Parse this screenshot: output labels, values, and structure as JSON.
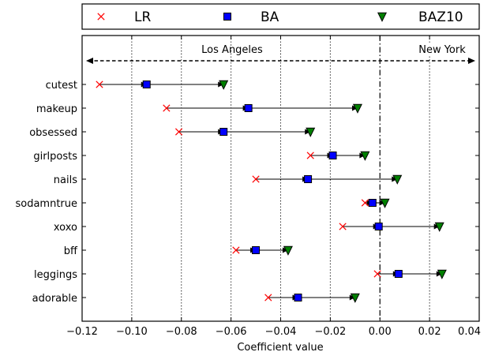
{
  "chart_data": {
    "type": "scatter",
    "xlabel": "Coefficient value",
    "xlim": [
      -0.12,
      0.04
    ],
    "xticks": [
      -0.12,
      -0.1,
      -0.08,
      -0.06,
      -0.04,
      -0.02,
      0.0,
      0.02,
      0.04
    ],
    "xtick_labels": [
      "−0.12",
      "−0.10",
      "−0.08",
      "−0.06",
      "−0.04",
      "−0.02",
      "0.00",
      "0.02",
      "0.04"
    ],
    "grid_x": [
      -0.1,
      -0.08,
      -0.06,
      -0.04,
      -0.02,
      0.02
    ],
    "zero_line": 0.0,
    "region_labels": {
      "left": "Los Angeles",
      "right": "New York"
    },
    "legend_position": "top (outside, horizontal)",
    "categories": [
      "cutest",
      "makeup",
      "obsessed",
      "girlposts",
      "nails",
      "sodamntrue",
      "xoxo",
      "bff",
      "leggings",
      "adorable"
    ],
    "series": [
      {
        "name": "LR",
        "marker": "x",
        "color": "#ff0000",
        "values": [
          -0.113,
          -0.086,
          -0.081,
          -0.028,
          -0.05,
          -0.006,
          -0.015,
          -0.058,
          -0.001,
          -0.045
        ]
      },
      {
        "name": "BA",
        "marker": "square",
        "color": "#0000ff",
        "values": [
          -0.094,
          -0.053,
          -0.063,
          -0.019,
          -0.029,
          -0.003,
          -0.0005,
          -0.05,
          0.0075,
          -0.033
        ]
      },
      {
        "name": "BAZ10",
        "marker": "triangle-down",
        "color": "#007f00",
        "values": [
          -0.063,
          -0.009,
          -0.028,
          -0.006,
          0.007,
          0.002,
          0.024,
          -0.037,
          0.025,
          -0.01
        ]
      }
    ]
  }
}
